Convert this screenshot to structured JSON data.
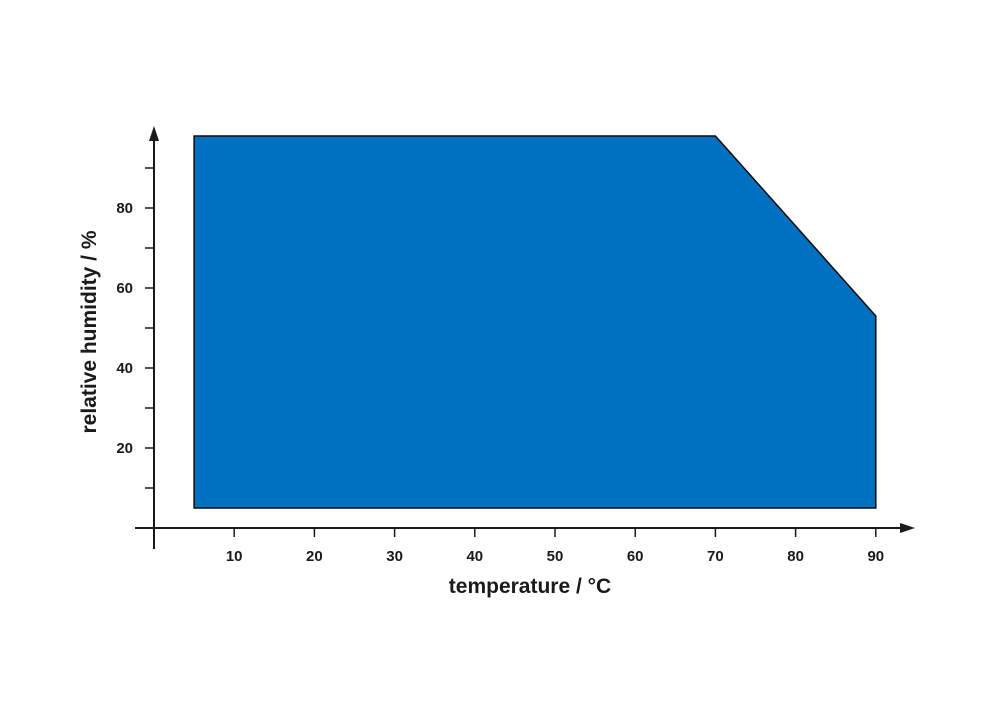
{
  "chart_data": {
    "type": "area",
    "title": "",
    "xlabel": "temperature / °C",
    "ylabel": "relative humidity / %",
    "xlim": [
      0,
      95
    ],
    "ylim": [
      0,
      100
    ],
    "x_ticks": [
      10,
      20,
      30,
      40,
      50,
      60,
      70,
      80,
      90
    ],
    "y_ticks": [
      20,
      40,
      60,
      80
    ],
    "y_minor_ticks": [
      10,
      30,
      50,
      70,
      90
    ],
    "grid": false,
    "region": {
      "color": "#0070c0",
      "outline_color": "#0a0a0a",
      "points": [
        {
          "x": 5,
          "y": 5
        },
        {
          "x": 5,
          "y": 98
        },
        {
          "x": 70,
          "y": 98
        },
        {
          "x": 90,
          "y": 53
        },
        {
          "x": 90,
          "y": 5
        }
      ]
    }
  }
}
